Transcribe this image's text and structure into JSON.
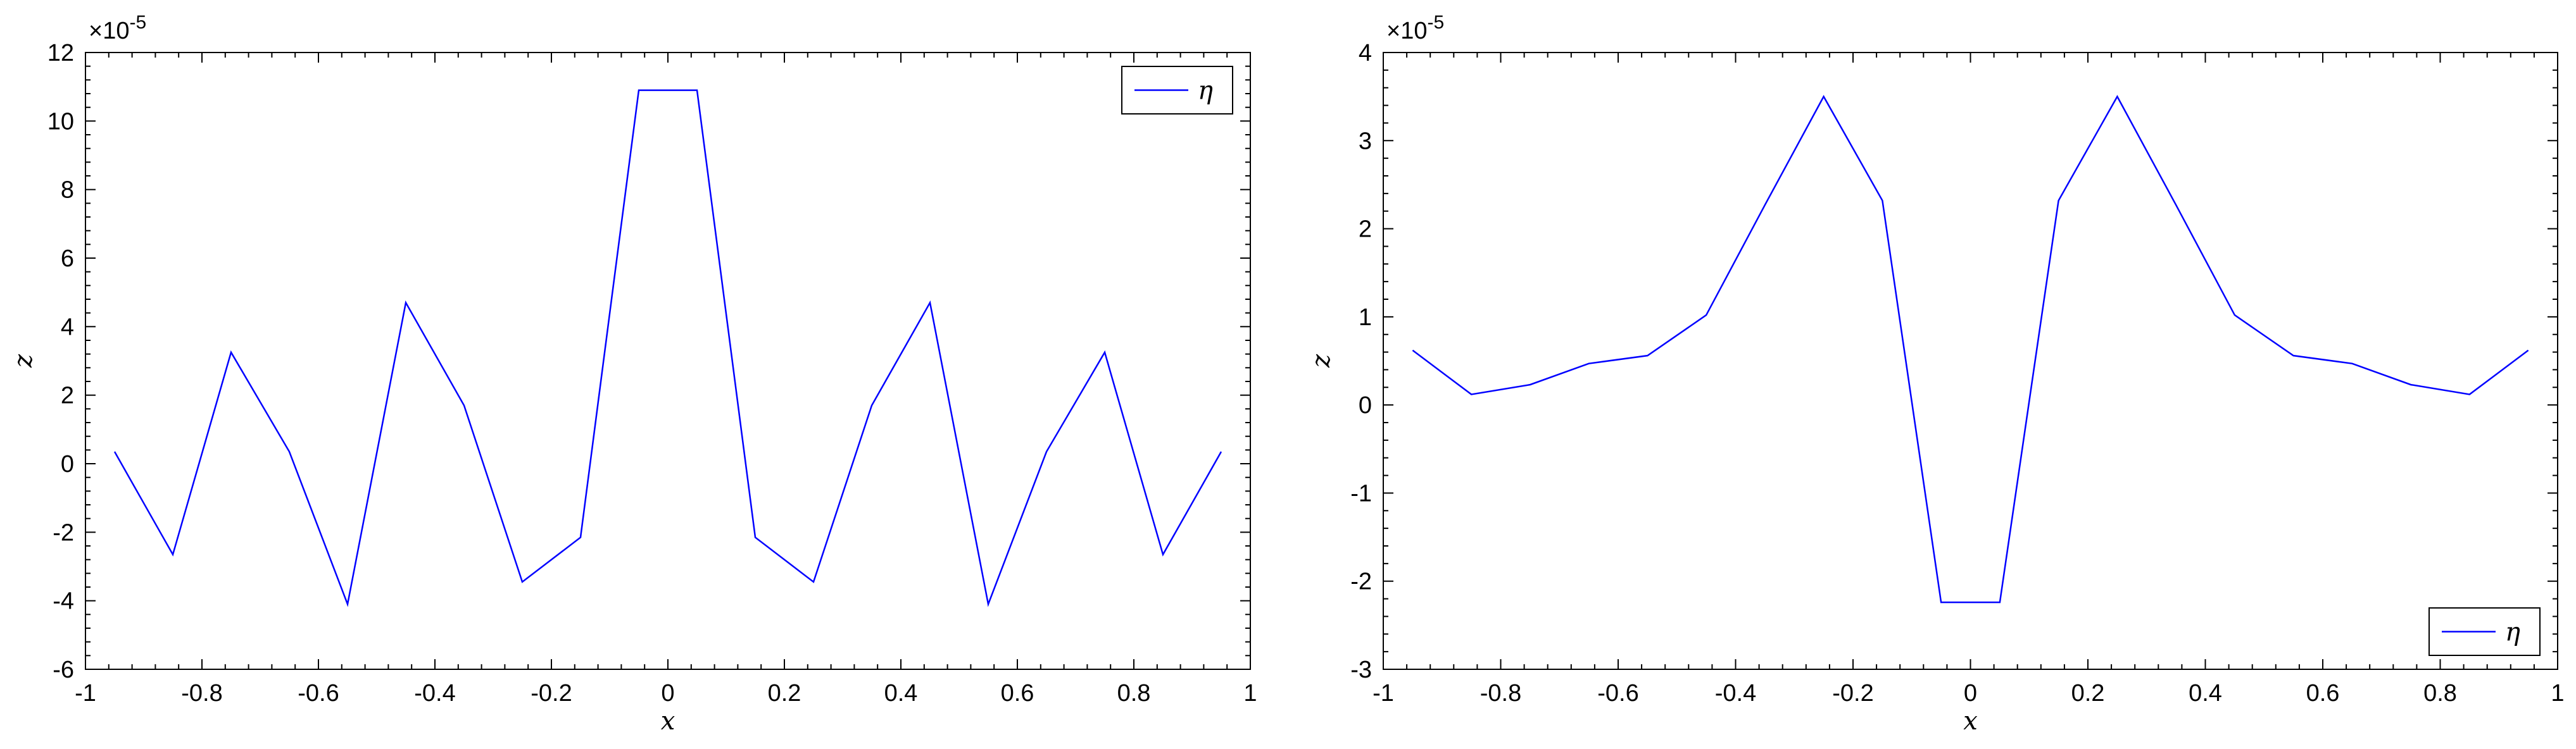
{
  "chart_data": [
    {
      "type": "line",
      "xlabel": "x",
      "ylabel": "z",
      "y_exponent": "×10",
      "y_exponent_power": "-5",
      "xlim": [
        -1,
        1
      ],
      "ylim": [
        -6,
        12
      ],
      "xticks": [
        -1,
        -0.8,
        -0.6,
        -0.4,
        -0.2,
        0,
        0.2,
        0.4,
        0.6,
        0.8,
        1
      ],
      "xtick_labels": [
        "-1",
        "-0.8",
        "-0.6",
        "-0.4",
        "-0.2",
        "0",
        "0.2",
        "0.4",
        "0.6",
        "0.8",
        "1"
      ],
      "yticks": [
        -6,
        -4,
        -2,
        0,
        2,
        4,
        6,
        8,
        10,
        12
      ],
      "ytick_labels": [
        "-6",
        "-4",
        "-2",
        "0",
        "2",
        "4",
        "6",
        "8",
        "10",
        "12"
      ],
      "legend_position": "top-right",
      "series": [
        {
          "name": "η",
          "color": "#0000ff",
          "x": [
            -0.95,
            -0.85,
            -0.75,
            -0.65,
            -0.55,
            -0.45,
            -0.35,
            -0.25,
            -0.15,
            -0.05,
            0.05,
            0.15,
            0.25,
            0.35,
            0.45,
            0.55,
            0.65,
            0.75,
            0.85,
            0.95
          ],
          "y": [
            0.35,
            -2.65,
            3.25,
            0.35,
            -4.1,
            4.7,
            1.7,
            -3.45,
            -2.15,
            10.9,
            10.9,
            -2.15,
            -3.45,
            1.7,
            4.7,
            -4.1,
            0.35,
            3.25,
            -2.65,
            0.35
          ]
        }
      ]
    },
    {
      "type": "line",
      "xlabel": "x",
      "ylabel": "z",
      "y_exponent": "×10",
      "y_exponent_power": "-5",
      "xlim": [
        -1,
        1
      ],
      "ylim": [
        -3,
        4
      ],
      "xticks": [
        -1,
        -0.8,
        -0.6,
        -0.4,
        -0.2,
        0,
        0.2,
        0.4,
        0.6,
        0.8,
        1
      ],
      "xtick_labels": [
        "-1",
        "-0.8",
        "-0.6",
        "-0.4",
        "-0.2",
        "0",
        "0.2",
        "0.4",
        "0.6",
        "0.8",
        "1"
      ],
      "yticks": [
        -3,
        -2,
        -1,
        0,
        1,
        2,
        3,
        4
      ],
      "ytick_labels": [
        "-3",
        "-2",
        "-1",
        "0",
        "1",
        "2",
        "3",
        "4"
      ],
      "legend_position": "bottom-right",
      "series": [
        {
          "name": "η",
          "color": "#0000ff",
          "x": [
            -0.95,
            -0.85,
            -0.75,
            -0.65,
            -0.55,
            -0.45,
            -0.35,
            -0.25,
            -0.15,
            -0.05,
            0.05,
            0.15,
            0.25,
            0.35,
            0.45,
            0.55,
            0.65,
            0.75,
            0.85,
            0.95
          ],
          "y": [
            0.62,
            0.12,
            0.23,
            0.47,
            0.56,
            1.02,
            2.27,
            3.5,
            2.32,
            -2.24,
            -2.24,
            2.32,
            3.5,
            2.27,
            1.02,
            0.56,
            0.47,
            0.23,
            0.12,
            0.62
          ]
        }
      ]
    }
  ]
}
